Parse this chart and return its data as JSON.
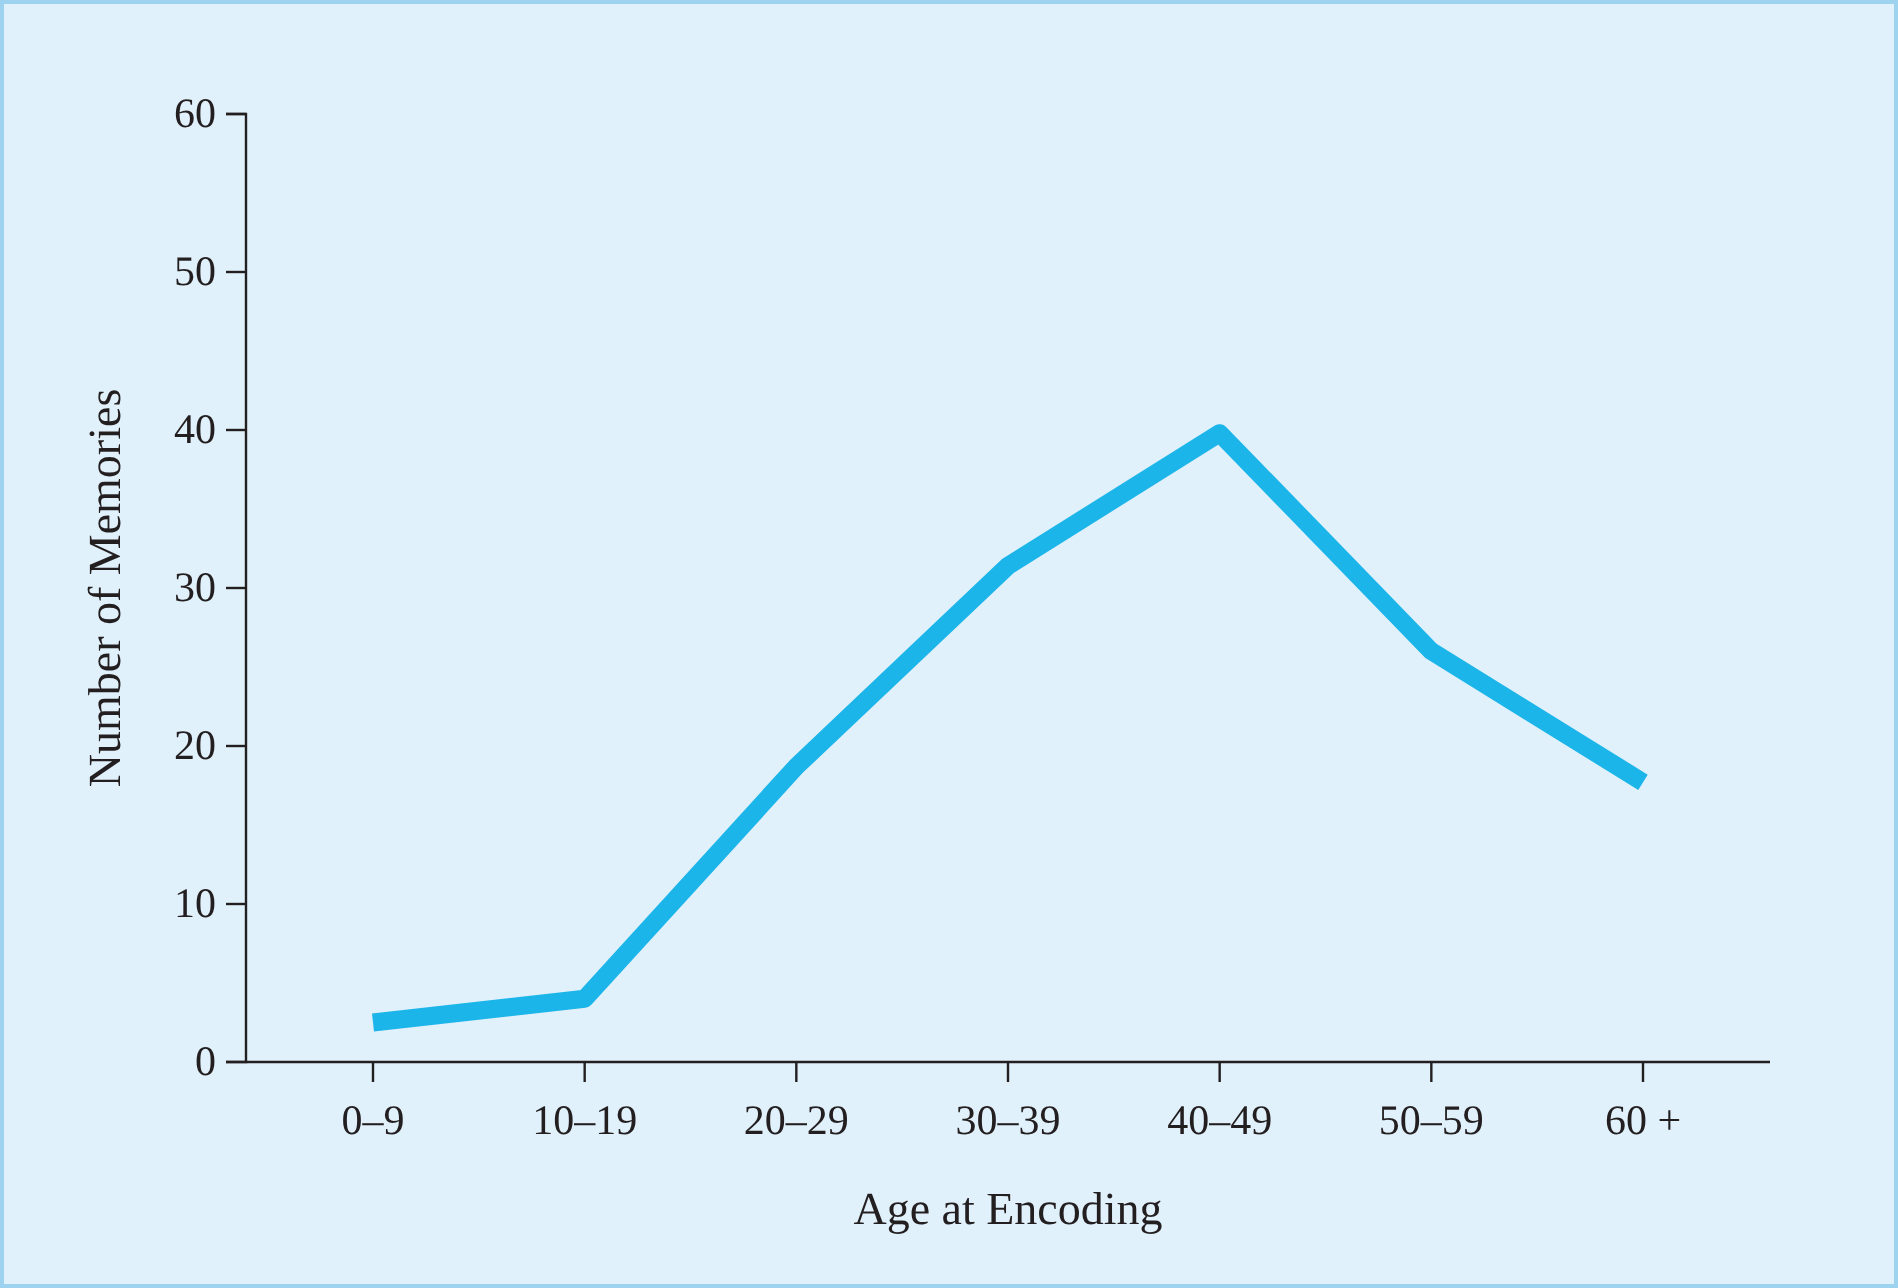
{
  "chart_data": {
    "type": "line",
    "xlabel": "Age at Encoding",
    "ylabel": "Number of Memories",
    "categories": [
      "0–9",
      "10–19",
      "20–29",
      "30–39",
      "40–49",
      "50–59",
      "60 +"
    ],
    "series": [
      {
        "color": "#1cb5ea",
        "values": [
          2.5,
          4,
          18.7,
          31.4,
          39.8,
          26,
          17.7
        ]
      }
    ],
    "ylim": [
      0,
      60
    ],
    "yticks": [
      0,
      10,
      20,
      30,
      40,
      50,
      60
    ],
    "grid": false,
    "marker": "none",
    "line_style": "solid"
  }
}
